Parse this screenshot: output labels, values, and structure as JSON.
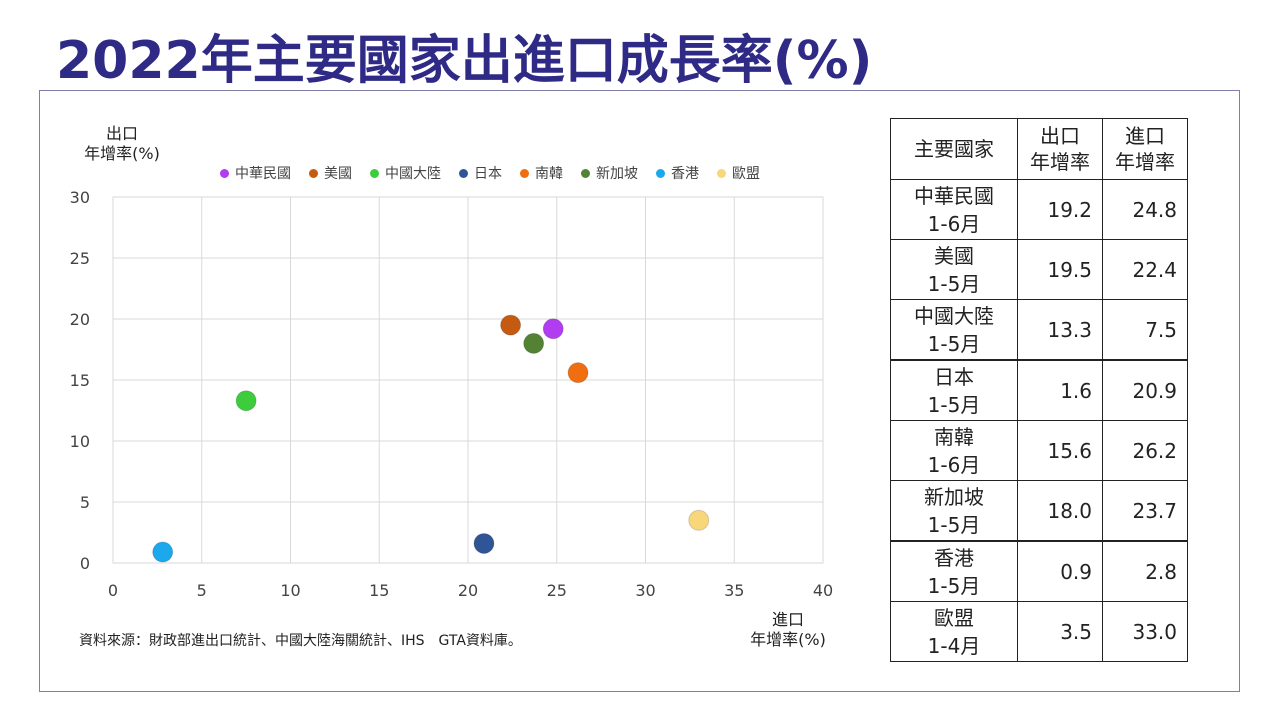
{
  "title": "2022年主要國家出進口成長率(%)",
  "chart_data": {
    "type": "scatter",
    "ylabel_lines": [
      "出口",
      "年增率(%)"
    ],
    "xlabel_lines": [
      "進口",
      "年增率(%)"
    ],
    "xlim": [
      0,
      40
    ],
    "ylim": [
      0,
      30
    ],
    "xticks": [
      0,
      5,
      10,
      15,
      20,
      25,
      30,
      35,
      40
    ],
    "yticks": [
      0,
      5,
      10,
      15,
      20,
      25,
      30
    ],
    "grid": true,
    "legend_position": "top",
    "series": [
      {
        "name": "中華民國",
        "color": "#b23cf0",
        "x": 24.8,
        "y": 19.2
      },
      {
        "name": "美國",
        "color": "#c55a11",
        "x": 22.4,
        "y": 19.5
      },
      {
        "name": "中國大陸",
        "color": "#3ccc3c",
        "x": 7.5,
        "y": 13.3
      },
      {
        "name": "日本",
        "color": "#2f5597",
        "x": 20.9,
        "y": 1.6
      },
      {
        "name": "南韓",
        "color": "#f06d10",
        "x": 26.2,
        "y": 15.6
      },
      {
        "name": "新加坡",
        "color": "#548235",
        "x": 23.7,
        "y": 18.0
      },
      {
        "name": "香港",
        "color": "#1ba8ec",
        "x": 2.8,
        "y": 0.9
      },
      {
        "name": "歐盟",
        "color": "#f7d77a",
        "x": 33.0,
        "y": 3.5
      }
    ]
  },
  "source": "資料來源：財政部進出口統計、中國大陸海關統計、IHS　GTA資料庫。",
  "table": {
    "header": {
      "country": "主要國家",
      "export_line1": "出口",
      "export_line2": "年增率",
      "import_line1": "進口",
      "import_line2": "年增率"
    },
    "rows": [
      {
        "country": "中華民國",
        "period": "1-6月",
        "export": "19.2",
        "import": "24.8"
      },
      {
        "country": "美國",
        "period": "1-5月",
        "export": "19.5",
        "import": "22.4"
      },
      {
        "country": "中國大陸",
        "period": "1-5月",
        "export": "13.3",
        "import": "7.5"
      },
      {
        "country": "日本",
        "period": "1-5月",
        "export": "1.6",
        "import": "20.9"
      },
      {
        "country": "南韓",
        "period": "1-6月",
        "export": "15.6",
        "import": "26.2"
      },
      {
        "country": "新加坡",
        "period": "1-5月",
        "export": "18.0",
        "import": "23.7"
      },
      {
        "country": "香港",
        "period": "1-5月",
        "export": "0.9",
        "import": "2.8"
      },
      {
        "country": "歐盟",
        "period": "1-4月",
        "export": "3.5",
        "import": "33.0"
      }
    ]
  }
}
